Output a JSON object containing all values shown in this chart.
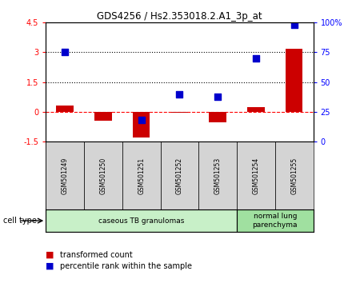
{
  "title": "GDS4256 / Hs2.353018.2.A1_3p_at",
  "samples": [
    "GSM501249",
    "GSM501250",
    "GSM501251",
    "GSM501252",
    "GSM501253",
    "GSM501254",
    "GSM501255"
  ],
  "transformed_count": [
    0.3,
    -0.45,
    -1.3,
    -0.05,
    -0.55,
    0.25,
    3.2
  ],
  "percentile_rank_display": [
    3.0,
    null,
    -0.4,
    0.9,
    0.75,
    2.7,
    4.4
  ],
  "left_ylim": [
    -1.5,
    4.5
  ],
  "left_yticks": [
    -1.5,
    0,
    1.5,
    3.0,
    4.5
  ],
  "right_yticks": [
    0,
    25,
    50,
    75,
    100
  ],
  "right_yticklabels": [
    "0",
    "25",
    "50",
    "75",
    "100%"
  ],
  "hlines": [
    0,
    1.5,
    3.0
  ],
  "hline_styles": [
    "dashed",
    "dotted",
    "dotted"
  ],
  "hline_colors": [
    "red",
    "black",
    "black"
  ],
  "bar_color": "#cc0000",
  "scatter_color": "#0000cc",
  "cell_type_groups": [
    {
      "label": "caseous TB granulomas",
      "start": 0,
      "end": 4,
      "color": "#c8f0c8"
    },
    {
      "label": "normal lung\nparenchyma",
      "start": 5,
      "end": 6,
      "color": "#a0e0a0"
    }
  ],
  "legend_bar_label": "transformed count",
  "legend_scatter_label": "percentile rank within the sample",
  "cell_type_label": "cell type",
  "bar_width": 0.45,
  "scatter_marker": "s",
  "scatter_size": 30
}
